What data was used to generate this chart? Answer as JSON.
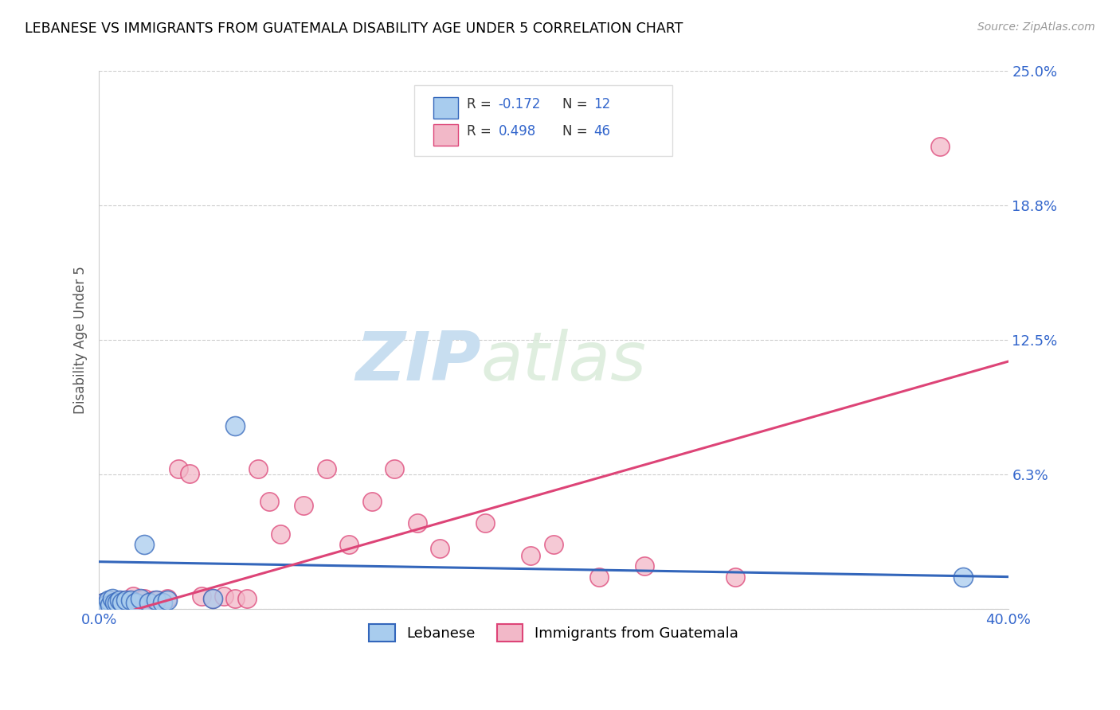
{
  "title": "LEBANESE VS IMMIGRANTS FROM GUATEMALA DISABILITY AGE UNDER 5 CORRELATION CHART",
  "source": "Source: ZipAtlas.com",
  "ylabel": "Disability Age Under 5",
  "xlim": [
    0.0,
    0.4
  ],
  "ylim": [
    0.0,
    0.25
  ],
  "xticks": [
    0.0,
    0.1,
    0.2,
    0.3,
    0.4
  ],
  "xticklabels": [
    "0.0%",
    "",
    "",
    "",
    "40.0%"
  ],
  "ytick_positions": [
    0.0,
    0.0625,
    0.125,
    0.1875,
    0.25
  ],
  "ytick_labels": [
    "",
    "6.3%",
    "12.5%",
    "18.8%",
    "25.0%"
  ],
  "watermark_zip": "ZIP",
  "watermark_atlas": "atlas",
  "color_blue": "#A8CCEE",
  "color_pink": "#F2B8C8",
  "line_blue": "#3366BB",
  "line_pink": "#DD4477",
  "Lebanese_x": [
    0.002,
    0.003,
    0.004,
    0.005,
    0.006,
    0.007,
    0.008,
    0.009,
    0.01,
    0.012,
    0.014,
    0.016,
    0.018,
    0.02,
    0.022,
    0.025,
    0.028,
    0.03,
    0.05,
    0.06,
    0.38
  ],
  "Lebanese_y": [
    0.003,
    0.002,
    0.004,
    0.002,
    0.005,
    0.003,
    0.003,
    0.004,
    0.003,
    0.004,
    0.004,
    0.003,
    0.005,
    0.03,
    0.003,
    0.004,
    0.003,
    0.004,
    0.005,
    0.085,
    0.015
  ],
  "Guatemala_x": [
    0.002,
    0.003,
    0.005,
    0.006,
    0.007,
    0.008,
    0.009,
    0.01,
    0.011,
    0.012,
    0.013,
    0.014,
    0.015,
    0.016,
    0.017,
    0.018,
    0.02,
    0.022,
    0.024,
    0.026,
    0.028,
    0.03,
    0.035,
    0.04,
    0.045,
    0.05,
    0.055,
    0.06,
    0.065,
    0.07,
    0.075,
    0.08,
    0.09,
    0.1,
    0.11,
    0.12,
    0.13,
    0.14,
    0.15,
    0.17,
    0.19,
    0.2,
    0.22,
    0.24,
    0.28,
    0.37
  ],
  "Guatemala_y": [
    0.003,
    0.003,
    0.004,
    0.003,
    0.003,
    0.003,
    0.004,
    0.003,
    0.004,
    0.003,
    0.003,
    0.004,
    0.006,
    0.003,
    0.003,
    0.004,
    0.005,
    0.003,
    0.004,
    0.004,
    0.003,
    0.005,
    0.065,
    0.063,
    0.006,
    0.005,
    0.006,
    0.005,
    0.005,
    0.065,
    0.05,
    0.035,
    0.048,
    0.065,
    0.03,
    0.05,
    0.065,
    0.04,
    0.028,
    0.04,
    0.025,
    0.03,
    0.015,
    0.02,
    0.015,
    0.215
  ],
  "leb_line_x": [
    0.0,
    0.4
  ],
  "leb_line_y": [
    0.022,
    0.015
  ],
  "guat_line_x": [
    0.0,
    0.4
  ],
  "guat_line_y": [
    -0.005,
    0.115
  ]
}
